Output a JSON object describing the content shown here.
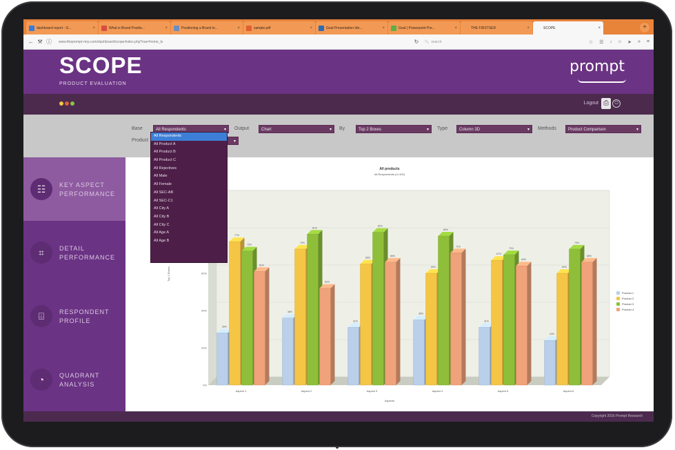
{
  "browser": {
    "tabs": [
      {
        "label": "dashboard report - G...",
        "active": false,
        "favicon_color": "#3a7bd5"
      },
      {
        "label": "What is Brand Positio...",
        "active": false,
        "favicon_color": "#d94d3f"
      },
      {
        "label": "Positioning a Brand in...",
        "active": false,
        "favicon_color": "#6c8ebf"
      },
      {
        "label": "sample.pdf",
        "active": false,
        "favicon_color": "#e06030"
      },
      {
        "label": "Goal Presentation Ide...",
        "active": false,
        "favicon_color": "#2d6db5"
      },
      {
        "label": "Goal | Powerpoint Pre...",
        "active": false,
        "favicon_color": "#5bb043"
      },
      {
        "label": "THE FIRSTSER",
        "active": false,
        "favicon_color": "#f29a55"
      },
      {
        "label": "SCOPE",
        "active": true,
        "favicon_color": "#f7f7f7"
      }
    ],
    "new_tab_symbol": "+",
    "url": "www.theprompt-mrp.com/dashboard/scope/index.php?nav=home_tx",
    "search_placeholder": "search"
  },
  "header": {
    "title": "SCOPE",
    "subtitle": "PRODUCT EVALUATION",
    "brand": "prompt"
  },
  "subbar": {
    "logout_label": "Logout",
    "dot_colors": [
      "#f2c443",
      "#e0613a",
      "#8ac43e"
    ]
  },
  "filters": {
    "base_label": "Base",
    "base_value": "All Respondents",
    "output_label": "Output",
    "output_value": "Chart",
    "by_label": "By",
    "by_value": "Top 2 Boxes",
    "type_label": "Type",
    "type_value": "Column 3D",
    "methods_label": "Methods",
    "methods_value": "Product Comparison",
    "product_label": "Product"
  },
  "dropdown": {
    "options": [
      "All Respondents",
      "All Product A",
      "All Product B",
      "All Product C",
      "All Rejectives",
      "All Male",
      "All Female",
      "All SEC-AB",
      "All SEC-C1",
      "All City A",
      "All City B",
      "All City C",
      "All Age A",
      "All Age B"
    ],
    "selected_index": 0
  },
  "sidebar": {
    "items": [
      {
        "label_line1": "KEY ASPECT",
        "label_line2": "PERFORMANCE",
        "icon": "presentation-icon",
        "active": true
      },
      {
        "label_line1": "DETAIL",
        "label_line2": "PERFORMANCE",
        "icon": "crop-icon",
        "active": false
      },
      {
        "label_line1": "RESPONDENT",
        "label_line2": "PROFILE",
        "icon": "id-card-icon",
        "active": false
      },
      {
        "label_line1": "QUADRANT",
        "label_line2": "ANALYSIS",
        "icon": "pie-chart-icon",
        "active": false
      }
    ]
  },
  "chart_data": {
    "type": "bar",
    "title": "All products",
    "subtitle": "All Respondents (n=100)",
    "xlabel": "Aspects",
    "ylabel": "Top 2 Boxes",
    "ylim": [
      0,
      100
    ],
    "y_ticks": [
      "0%",
      "20%",
      "40%",
      "60%",
      "80%",
      "100%"
    ],
    "categories": [
      "Aspect 1",
      "Aspect 2",
      "Aspect 3",
      "Aspect 4",
      "Aspect 5",
      "Aspect 6"
    ],
    "series": [
      {
        "name": "Product 1",
        "color": "#b9cfea",
        "values": [
          28,
          36,
          31,
          35,
          31,
          24
        ]
      },
      {
        "name": "Product 2",
        "color": "#f5c545",
        "values": [
          77,
          73,
          65,
          60,
          67,
          60
        ]
      },
      {
        "name": "Product 3",
        "color": "#8fbf3a",
        "values": [
          72,
          81,
          82,
          80,
          70,
          73
        ]
      },
      {
        "name": "Product 4",
        "color": "#f0a27a",
        "values": [
          61,
          52,
          66,
          71,
          64,
          66
        ]
      }
    ],
    "legend_position": "right"
  },
  "footer": {
    "copyright": "Copyright 2016 Prompt Research"
  }
}
